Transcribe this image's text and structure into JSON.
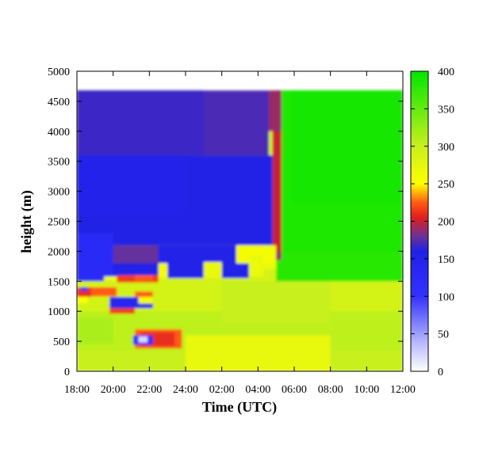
{
  "chart_data": {
    "type": "heatmap",
    "title": "",
    "xlabel": "Time (UTC)",
    "ylabel": "height (m)",
    "x_tick_labels": [
      "18:00",
      "20:00",
      "22:00",
      "24:00",
      "02:00",
      "04:00",
      "06:00",
      "08:00",
      "10:00",
      "12:00"
    ],
    "x_range_hours": [
      0,
      18
    ],
    "y_ticks": [
      0,
      500,
      1000,
      1500,
      2000,
      2500,
      3000,
      3500,
      4000,
      4500,
      5000
    ],
    "ylim": [
      0,
      5000
    ],
    "data_top_height": 4680,
    "colorbar": {
      "ticks": [
        0,
        50,
        100,
        150,
        200,
        250,
        300,
        350,
        400
      ],
      "range": [
        0,
        400
      ],
      "stops": [
        {
          "value": 0,
          "color": "#ffffff"
        },
        {
          "value": 40,
          "color": "#b4b4ff"
        },
        {
          "value": 100,
          "color": "#3232ff"
        },
        {
          "value": 160,
          "color": "#2020e6"
        },
        {
          "value": 180,
          "color": "#6a3296"
        },
        {
          "value": 205,
          "color": "#e01e1e"
        },
        {
          "value": 225,
          "color": "#ff5a14"
        },
        {
          "value": 250,
          "color": "#ffff00"
        },
        {
          "value": 300,
          "color": "#c8f01e"
        },
        {
          "value": 400,
          "color": "#00e600"
        }
      ]
    },
    "grid": false,
    "legend": "colorbar-right",
    "regions": [
      {
        "t0": 0,
        "t1": 18,
        "h0": 0,
        "h1": 4680,
        "value": 290,
        "note": "background"
      },
      {
        "t0": 0,
        "t1": 18,
        "h0": 0,
        "h1": 350,
        "value": 300
      },
      {
        "t0": 0,
        "t1": 18,
        "h0": 350,
        "h1": 1000,
        "value": 305
      },
      {
        "t0": 0,
        "t1": 2,
        "h0": 450,
        "h1": 900,
        "value": 315
      },
      {
        "t0": 6,
        "t1": 14,
        "h0": 0,
        "h1": 600,
        "value": 270
      },
      {
        "t0": 8,
        "t1": 14,
        "h0": 800,
        "h1": 1500,
        "value": 300
      },
      {
        "t0": 11,
        "t1": 18,
        "h0": 1500,
        "h1": 4680,
        "value": 380
      },
      {
        "t0": 11.2,
        "t1": 18,
        "h0": 2000,
        "h1": 4680,
        "value": 385
      },
      {
        "t0": 11.8,
        "t1": 18,
        "h0": 2800,
        "h1": 4680,
        "value": 390
      },
      {
        "t0": 10.8,
        "t1": 11.3,
        "h0": 1900,
        "h1": 4680,
        "value": 200
      },
      {
        "t0": 10.6,
        "t1": 11.3,
        "h0": 4000,
        "h1": 4680,
        "value": 190
      },
      {
        "t0": 0,
        "t1": 10.6,
        "h0": 3600,
        "h1": 4680,
        "value": 172
      },
      {
        "t0": 0,
        "t1": 7,
        "h0": 3600,
        "h1": 4680,
        "value": 168
      },
      {
        "t0": 0,
        "t1": 10.8,
        "h0": 2100,
        "h1": 3600,
        "value": 160
      },
      {
        "t0": 0,
        "t1": 6,
        "h0": 2600,
        "h1": 3600,
        "value": 150
      },
      {
        "t0": 0,
        "t1": 9.5,
        "h0": 1550,
        "h1": 2100,
        "value": 155
      },
      {
        "t0": 0,
        "t1": 2,
        "h0": 1500,
        "h1": 2300,
        "value": 120
      },
      {
        "t0": 2,
        "t1": 4.5,
        "h0": 1800,
        "h1": 2100,
        "value": 178
      },
      {
        "t0": 8.8,
        "t1": 11,
        "h0": 1800,
        "h1": 2100,
        "value": 260
      },
      {
        "t0": 11,
        "t1": 11.3,
        "h0": 1850,
        "h1": 2000,
        "value": 190
      },
      {
        "t0": 9.5,
        "t1": 10.3,
        "h0": 1580,
        "h1": 1950,
        "value": 268
      },
      {
        "t0": 10.3,
        "t1": 11,
        "h0": 1700,
        "h1": 1800,
        "value": 270
      },
      {
        "t0": 7,
        "t1": 8,
        "h0": 1550,
        "h1": 1820,
        "value": 270
      },
      {
        "t0": 4.5,
        "t1": 5,
        "h0": 1550,
        "h1": 1800,
        "value": 260
      },
      {
        "t0": 2.2,
        "t1": 4.5,
        "h0": 1480,
        "h1": 1600,
        "value": 215
      },
      {
        "t0": 3.2,
        "t1": 4.2,
        "h0": 1500,
        "h1": 1600,
        "value": 225
      },
      {
        "t0": 1.5,
        "t1": 2.2,
        "h0": 1500,
        "h1": 1580,
        "value": 265
      },
      {
        "t0": 0,
        "t1": 0.8,
        "h0": 1230,
        "h1": 1400,
        "value": 210
      },
      {
        "t0": 0.8,
        "t1": 2.2,
        "h0": 1250,
        "h1": 1400,
        "value": 225
      },
      {
        "t0": 0.2,
        "t1": 0.6,
        "h0": 1340,
        "h1": 1400,
        "value": 120
      },
      {
        "t0": 1.8,
        "t1": 4.2,
        "h0": 1050,
        "h1": 1240,
        "value": 140
      },
      {
        "t0": 1.8,
        "t1": 3.2,
        "h0": 960,
        "h1": 1050,
        "value": 215
      },
      {
        "t0": 3.2,
        "t1": 4.2,
        "h0": 1240,
        "h1": 1330,
        "value": 225
      },
      {
        "t0": 3.4,
        "t1": 4.2,
        "h0": 1130,
        "h1": 1240,
        "value": 260
      },
      {
        "t0": 0,
        "t1": 0.6,
        "h0": 1140,
        "h1": 1240,
        "value": 250
      },
      {
        "t0": 0.6,
        "t1": 1.2,
        "h0": 1050,
        "h1": 1240,
        "value": 290
      },
      {
        "t0": 3.2,
        "t1": 5.8,
        "h0": 380,
        "h1": 700,
        "value": 225
      },
      {
        "t0": 3.5,
        "t1": 5.4,
        "h0": 420,
        "h1": 650,
        "value": 210
      },
      {
        "t0": 3.1,
        "t1": 4.2,
        "h0": 440,
        "h1": 600,
        "value": 110
      },
      {
        "t0": 3.4,
        "t1": 3.9,
        "h0": 480,
        "h1": 580,
        "value": 20
      }
    ]
  }
}
